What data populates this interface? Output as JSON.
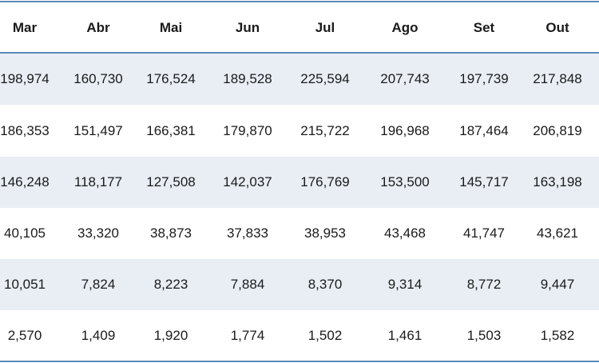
{
  "table": {
    "header": [
      "Mar",
      "Abr",
      "Mai",
      "Jun",
      "Jul",
      "Ago",
      "Set",
      "Out"
    ],
    "rows": [
      [
        "198,974",
        "160,730",
        "176,524",
        "189,528",
        "225,594",
        "207,743",
        "197,739",
        "217,848"
      ],
      [
        "186,353",
        "151,497",
        "166,381",
        "179,870",
        "215,722",
        "196,968",
        "187,464",
        "206,819"
      ],
      [
        "146,248",
        "118,177",
        "127,508",
        "142,037",
        "176,769",
        "153,500",
        "145,717",
        "163,198"
      ],
      [
        "40,105",
        "33,320",
        "38,873",
        "37,833",
        "38,953",
        "43,468",
        "41,747",
        "43,621"
      ],
      [
        "10,051",
        "7,824",
        "8,223",
        "7,884",
        "8,370",
        "9,314",
        "8,772",
        "9,447"
      ],
      [
        "2,570",
        "1,409",
        "1,920",
        "1,774",
        "1,502",
        "1,461",
        "1,503",
        "1,582"
      ]
    ]
  }
}
